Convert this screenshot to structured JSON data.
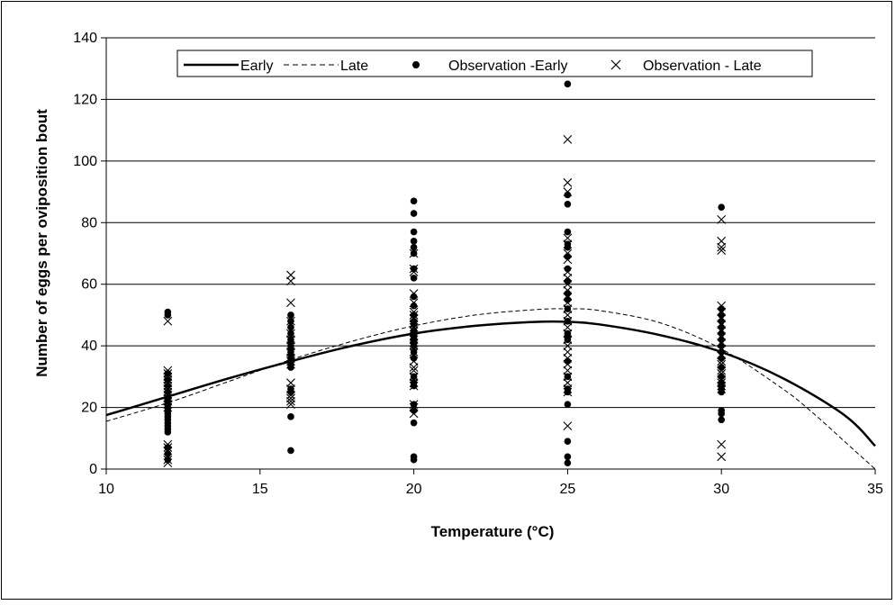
{
  "chart_data": {
    "type": "scatter",
    "xlabel": "Temperature (°C)",
    "ylabel": "Number of eggs per oviposition bout",
    "xlim": [
      10,
      35
    ],
    "ylim": [
      0,
      140
    ],
    "xticks": [
      10,
      15,
      20,
      25,
      30,
      35
    ],
    "yticks": [
      0,
      20,
      40,
      60,
      80,
      100,
      120,
      140
    ],
    "grid": "horizontal",
    "legend_placement": "top",
    "legend": {
      "early": "Early",
      "late": "Late",
      "obs_early": "Observation -Early",
      "obs_late": "Observation - Late"
    },
    "series": [
      {
        "name": "Early",
        "kind": "curve",
        "style": "solid",
        "color": "#000000",
        "x": [
          10,
          12,
          14,
          16,
          18,
          20,
          22,
          24,
          25,
          26,
          28,
          30,
          32,
          34,
          35
        ],
        "y": [
          17.5,
          23.5,
          29.5,
          35,
          40,
          44,
          46.5,
          47.8,
          47.8,
          47,
          43.5,
          38,
          29.5,
          17.5,
          7.5
        ]
      },
      {
        "name": "Late",
        "kind": "curve",
        "style": "dashed",
        "color": "#000000",
        "x": [
          10,
          12,
          14,
          16,
          18,
          20,
          22,
          24,
          25,
          26,
          28,
          30,
          32,
          33,
          34,
          35
        ],
        "y": [
          15.5,
          21.5,
          28.5,
          35.5,
          41.5,
          46.5,
          50,
          51.8,
          52,
          51.5,
          47.5,
          39,
          26,
          18,
          9,
          0
        ]
      },
      {
        "name": "Observation -Early",
        "kind": "points",
        "marker": "dot",
        "color": "#000000",
        "points": [
          [
            12,
            51
          ],
          [
            12,
            50
          ],
          [
            12,
            31
          ],
          [
            12,
            29
          ],
          [
            12,
            27
          ],
          [
            12,
            25
          ],
          [
            12,
            23
          ],
          [
            12,
            22
          ],
          [
            12,
            21
          ],
          [
            12,
            20
          ],
          [
            12,
            19
          ],
          [
            12,
            18
          ],
          [
            12,
            17
          ],
          [
            12,
            16
          ],
          [
            12,
            15
          ],
          [
            12,
            14
          ],
          [
            12,
            13
          ],
          [
            12,
            12
          ],
          [
            12,
            7
          ],
          [
            12,
            5
          ],
          [
            12,
            3
          ],
          [
            16,
            50
          ],
          [
            16,
            48
          ],
          [
            16,
            46
          ],
          [
            16,
            44
          ],
          [
            16,
            42
          ],
          [
            16,
            41
          ],
          [
            16,
            40
          ],
          [
            16,
            39
          ],
          [
            16,
            38
          ],
          [
            16,
            37
          ],
          [
            16,
            36
          ],
          [
            16,
            35
          ],
          [
            16,
            34
          ],
          [
            16,
            33
          ],
          [
            16,
            26
          ],
          [
            16,
            25
          ],
          [
            16,
            17
          ],
          [
            16,
            6
          ],
          [
            20,
            87
          ],
          [
            20,
            83
          ],
          [
            20,
            77
          ],
          [
            20,
            74
          ],
          [
            20,
            72
          ],
          [
            20,
            70
          ],
          [
            20,
            65
          ],
          [
            20,
            62
          ],
          [
            20,
            56
          ],
          [
            20,
            53
          ],
          [
            20,
            50
          ],
          [
            20,
            48
          ],
          [
            20,
            47
          ],
          [
            20,
            45
          ],
          [
            20,
            44
          ],
          [
            20,
            43
          ],
          [
            20,
            42
          ],
          [
            20,
            41
          ],
          [
            20,
            40
          ],
          [
            20,
            38
          ],
          [
            20,
            36
          ],
          [
            20,
            30
          ],
          [
            20,
            28
          ],
          [
            20,
            27
          ],
          [
            20,
            21
          ],
          [
            20,
            19
          ],
          [
            20,
            15
          ],
          [
            20,
            4
          ],
          [
            20,
            3
          ],
          [
            25,
            125
          ],
          [
            25,
            89
          ],
          [
            25,
            86
          ],
          [
            25,
            77
          ],
          [
            25,
            73
          ],
          [
            25,
            72
          ],
          [
            25,
            69
          ],
          [
            25,
            65
          ],
          [
            25,
            61
          ],
          [
            25,
            57
          ],
          [
            25,
            55
          ],
          [
            25,
            52
          ],
          [
            25,
            48
          ],
          [
            25,
            44
          ],
          [
            25,
            43
          ],
          [
            25,
            42
          ],
          [
            25,
            35
          ],
          [
            25,
            30
          ],
          [
            25,
            26
          ],
          [
            25,
            25
          ],
          [
            25,
            21
          ],
          [
            25,
            9
          ],
          [
            25,
            4
          ],
          [
            25,
            2
          ],
          [
            30,
            85
          ],
          [
            30,
            52
          ],
          [
            30,
            50
          ],
          [
            30,
            48
          ],
          [
            30,
            46
          ],
          [
            30,
            44
          ],
          [
            30,
            42
          ],
          [
            30,
            40
          ],
          [
            30,
            38
          ],
          [
            30,
            36
          ],
          [
            30,
            33
          ],
          [
            30,
            30
          ],
          [
            30,
            28
          ],
          [
            30,
            27
          ],
          [
            30,
            26
          ],
          [
            30,
            25
          ],
          [
            30,
            19
          ],
          [
            30,
            18
          ],
          [
            30,
            16
          ]
        ]
      },
      {
        "name": "Observation - Late",
        "kind": "points",
        "marker": "cross",
        "color": "#000000",
        "points": [
          [
            12,
            48
          ],
          [
            12,
            32
          ],
          [
            12,
            31
          ],
          [
            12,
            30
          ],
          [
            12,
            29
          ],
          [
            12,
            28
          ],
          [
            12,
            27
          ],
          [
            12,
            26
          ],
          [
            12,
            25
          ],
          [
            12,
            24
          ],
          [
            12,
            23
          ],
          [
            12,
            22
          ],
          [
            12,
            21
          ],
          [
            12,
            20
          ],
          [
            12,
            8
          ],
          [
            12,
            7
          ],
          [
            12,
            6
          ],
          [
            12,
            3
          ],
          [
            12,
            2
          ],
          [
            16,
            63
          ],
          [
            16,
            61
          ],
          [
            16,
            54
          ],
          [
            16,
            48
          ],
          [
            16,
            44
          ],
          [
            16,
            42
          ],
          [
            16,
            40
          ],
          [
            16,
            38
          ],
          [
            16,
            36
          ],
          [
            16,
            35
          ],
          [
            16,
            34
          ],
          [
            16,
            28
          ],
          [
            16,
            26
          ],
          [
            16,
            24
          ],
          [
            16,
            23
          ],
          [
            16,
            22
          ],
          [
            16,
            21
          ],
          [
            20,
            70
          ],
          [
            20,
            65
          ],
          [
            20,
            64
          ],
          [
            20,
            57
          ],
          [
            20,
            54
          ],
          [
            20,
            51
          ],
          [
            20,
            50
          ],
          [
            20,
            49
          ],
          [
            20,
            47
          ],
          [
            20,
            46
          ],
          [
            20,
            45
          ],
          [
            20,
            43
          ],
          [
            20,
            42
          ],
          [
            20,
            41
          ],
          [
            20,
            40
          ],
          [
            20,
            38
          ],
          [
            20,
            35
          ],
          [
            20,
            33
          ],
          [
            20,
            32
          ],
          [
            20,
            30
          ],
          [
            20,
            28
          ],
          [
            20,
            27
          ],
          [
            20,
            21
          ],
          [
            20,
            20
          ],
          [
            20,
            18
          ],
          [
            25,
            107
          ],
          [
            25,
            93
          ],
          [
            25,
            90
          ],
          [
            25,
            75
          ],
          [
            25,
            73
          ],
          [
            25,
            70
          ],
          [
            25,
            68
          ],
          [
            25,
            64
          ],
          [
            25,
            62
          ],
          [
            25,
            60
          ],
          [
            25,
            58
          ],
          [
            25,
            56
          ],
          [
            25,
            54
          ],
          [
            25,
            52
          ],
          [
            25,
            50
          ],
          [
            25,
            48
          ],
          [
            25,
            46
          ],
          [
            25,
            44
          ],
          [
            25,
            42
          ],
          [
            25,
            40
          ],
          [
            25,
            38
          ],
          [
            25,
            36
          ],
          [
            25,
            34
          ],
          [
            25,
            32
          ],
          [
            25,
            30
          ],
          [
            25,
            28
          ],
          [
            25,
            26
          ],
          [
            25,
            25
          ],
          [
            25,
            14
          ],
          [
            30,
            81
          ],
          [
            30,
            74
          ],
          [
            30,
            72
          ],
          [
            30,
            71
          ],
          [
            30,
            53
          ],
          [
            30,
            51
          ],
          [
            30,
            49
          ],
          [
            30,
            47
          ],
          [
            30,
            45
          ],
          [
            30,
            43
          ],
          [
            30,
            41
          ],
          [
            30,
            39
          ],
          [
            30,
            37
          ],
          [
            30,
            35
          ],
          [
            30,
            34
          ],
          [
            30,
            32
          ],
          [
            30,
            31
          ],
          [
            30,
            29
          ],
          [
            30,
            28
          ],
          [
            30,
            27
          ],
          [
            30,
            26
          ],
          [
            30,
            8
          ],
          [
            30,
            4
          ]
        ]
      }
    ]
  }
}
